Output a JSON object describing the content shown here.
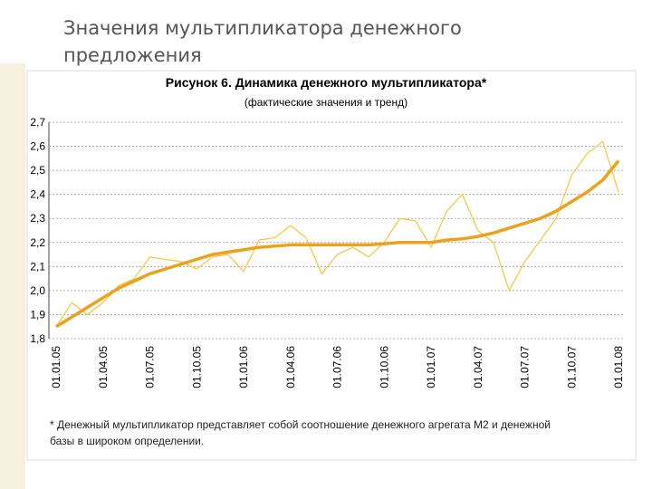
{
  "slide_title": "Значения мультипликатора денежного предложения",
  "chart_data": {
    "type": "line",
    "title": "Рисунок 6. Динамика денежного мультипликатора*",
    "subtitle": "(фактические значения и тренд)",
    "footnote": "* Денежный мультипликатор представляет собой соотношение денежного агрегата М2 и денежной базы в широком определении.",
    "categories": [
      "01.01.05",
      null,
      null,
      "01.04.05",
      null,
      null,
      "01.07.05",
      null,
      null,
      "01.10.05",
      null,
      null,
      "01.01.06",
      null,
      null,
      "01.04.06",
      null,
      null,
      "01.07.06",
      null,
      null,
      "01.10.06",
      null,
      null,
      "01.01.07",
      null,
      null,
      "01.04.07",
      null,
      null,
      "01.07.07",
      null,
      null,
      "01.10.07",
      null,
      null,
      "01.01.08"
    ],
    "series": [
      {
        "color": "#f7c948",
        "width": 1.3,
        "values": [
          1.85,
          1.95,
          1.9,
          1.95,
          2.02,
          2.05,
          2.14,
          2.13,
          2.12,
          2.09,
          2.14,
          2.15,
          2.08,
          2.21,
          2.22,
          2.27,
          2.22,
          2.07,
          2.15,
          2.18,
          2.14,
          2.2,
          2.3,
          2.29,
          2.18,
          2.33,
          2.4,
          2.25,
          2.2,
          2.0,
          2.12,
          2.21,
          2.3,
          2.48,
          2.57,
          2.62,
          2.41
        ]
      },
      {
        "color": "#eba21c",
        "width": 3.5,
        "values": [
          1.85,
          1.89,
          1.93,
          1.97,
          2.01,
          2.04,
          2.07,
          2.09,
          2.11,
          2.13,
          2.15,
          2.16,
          2.17,
          2.18,
          2.185,
          2.19,
          2.19,
          2.19,
          2.19,
          2.19,
          2.19,
          2.195,
          2.2,
          2.2,
          2.2,
          2.21,
          2.215,
          2.225,
          2.24,
          2.26,
          2.28,
          2.3,
          2.33,
          2.37,
          2.41,
          2.46,
          2.54
        ]
      }
    ],
    "ylim": [
      1.8,
      2.7
    ],
    "yticks": [
      {
        "value": 1.8,
        "label": "1,8"
      },
      {
        "value": 1.9,
        "label": "1,9"
      },
      {
        "value": 2.0,
        "label": "2,0"
      },
      {
        "value": 2.1,
        "label": "2,1"
      },
      {
        "value": 2.2,
        "label": "2,2"
      },
      {
        "value": 2.3,
        "label": "2,3"
      },
      {
        "value": 2.4,
        "label": "2,4"
      },
      {
        "value": 2.5,
        "label": "2,5"
      },
      {
        "value": 2.6,
        "label": "2,6"
      },
      {
        "value": 2.7,
        "label": "2,7"
      }
    ],
    "grid": true
  }
}
